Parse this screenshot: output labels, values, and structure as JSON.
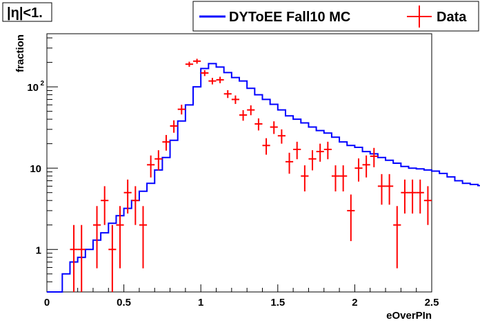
{
  "chart_data": {
    "type": "histogram",
    "title_box": "|η|<1.",
    "xlabel": "eOverPIn",
    "ylabel": "fraction",
    "xlim": [
      0,
      2.5
    ],
    "ylim": [
      0.3,
      450
    ],
    "log_y": true,
    "bin_width": 0.05,
    "x_ticks": [
      "0",
      "0.5",
      "1",
      "1.5",
      "2",
      "2.5"
    ],
    "y_ticks": [
      {
        "value": 1,
        "label": "1",
        "sup": ""
      },
      {
        "value": 10,
        "label": "10",
        "sup": ""
      },
      {
        "value": 100,
        "label": "10",
        "sup": "2"
      }
    ],
    "legend": {
      "position": "top-right"
    },
    "series": [
      {
        "name": "DYToEE Fall10 MC",
        "style": "step",
        "color": "#0000ff",
        "values": [
          0.3,
          0.3,
          0.5,
          0.7,
          0.8,
          1.0,
          1.3,
          1.6,
          2.1,
          2.6,
          3.2,
          4.0,
          5.2,
          6.5,
          9.5,
          13.5,
          22,
          38,
          60,
          100,
          168,
          193,
          175,
          150,
          130,
          118,
          96,
          80,
          70,
          61,
          52,
          44,
          40,
          36,
          32,
          29,
          27,
          24,
          21,
          19,
          18,
          16,
          15,
          13.5,
          12.5,
          11.5,
          10.5,
          10,
          9.8,
          9.5,
          9.2,
          8.6,
          7.8,
          7.0,
          6.5,
          6.3,
          6.1,
          5.9,
          5.6,
          5.3
        ]
      },
      {
        "name": "Data",
        "style": "errorbars",
        "color": "#ff0000",
        "points": [
          {
            "x": 0.175,
            "y": 1
          },
          {
            "x": 0.225,
            "y": 1
          },
          {
            "x": 0.325,
            "y": 2
          },
          {
            "x": 0.375,
            "y": 4
          },
          {
            "x": 0.425,
            "y": 1
          },
          {
            "x": 0.475,
            "y": 2
          },
          {
            "x": 0.525,
            "y": 5
          },
          {
            "x": 0.575,
            "y": 4
          },
          {
            "x": 0.625,
            "y": 2
          },
          {
            "x": 0.675,
            "y": 11
          },
          {
            "x": 0.725,
            "y": 13
          },
          {
            "x": 0.775,
            "y": 21
          },
          {
            "x": 0.825,
            "y": 33
          },
          {
            "x": 0.875,
            "y": 53
          },
          {
            "x": 0.925,
            "y": 190
          },
          {
            "x": 0.975,
            "y": 207
          },
          {
            "x": 1.025,
            "y": 148
          },
          {
            "x": 1.075,
            "y": 118
          },
          {
            "x": 1.125,
            "y": 122
          },
          {
            "x": 1.175,
            "y": 82
          },
          {
            "x": 1.225,
            "y": 70
          },
          {
            "x": 1.275,
            "y": 45
          },
          {
            "x": 1.325,
            "y": 52
          },
          {
            "x": 1.375,
            "y": 35
          },
          {
            "x": 1.425,
            "y": 19
          },
          {
            "x": 1.475,
            "y": 32
          },
          {
            "x": 1.525,
            "y": 25
          },
          {
            "x": 1.575,
            "y": 12
          },
          {
            "x": 1.625,
            "y": 17
          },
          {
            "x": 1.675,
            "y": 8
          },
          {
            "x": 1.725,
            "y": 13
          },
          {
            "x": 1.775,
            "y": 16
          },
          {
            "x": 1.825,
            "y": 17
          },
          {
            "x": 1.875,
            "y": 8
          },
          {
            "x": 1.925,
            "y": 8
          },
          {
            "x": 1.975,
            "y": 3
          },
          {
            "x": 2.025,
            "y": 10
          },
          {
            "x": 2.075,
            "y": 11
          },
          {
            "x": 2.125,
            "y": 14
          },
          {
            "x": 2.175,
            "y": 6
          },
          {
            "x": 2.225,
            "y": 6
          },
          {
            "x": 2.275,
            "y": 2
          },
          {
            "x": 2.325,
            "y": 5
          },
          {
            "x": 2.375,
            "y": 5
          },
          {
            "x": 2.425,
            "y": 5
          },
          {
            "x": 2.475,
            "y": 4
          }
        ]
      }
    ]
  }
}
